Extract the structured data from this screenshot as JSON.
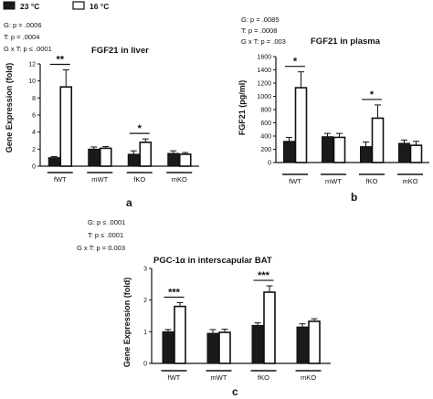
{
  "legend": {
    "items": [
      {
        "label": "23 °C",
        "fill": "#1a1a1a"
      },
      {
        "label": "16 °C",
        "fill": "#ffffff"
      }
    ]
  },
  "chart_data": [
    {
      "type": "bar",
      "panel_label": "a",
      "title": "FGF21 in liver",
      "ylabel": "Gene Expression (fold)",
      "ylim": [
        0,
        12
      ],
      "yticks": [
        0,
        2,
        4,
        6,
        8,
        10,
        12
      ],
      "stats": [
        "G: p = .0006",
        "T: p = .0004",
        "G x T: p ≤ .0001"
      ],
      "groups": [
        "fWT",
        "mWT",
        "fKO",
        "mKO"
      ],
      "series": [
        {
          "name": "23 °C",
          "values": [
            1.0,
            2.0,
            1.4,
            1.5
          ],
          "errors": [
            0.12,
            0.25,
            0.4,
            0.3
          ]
        },
        {
          "name": "16 °C",
          "values": [
            9.3,
            2.1,
            2.8,
            1.4
          ],
          "errors": [
            2.0,
            0.2,
            0.4,
            0.2
          ]
        }
      ],
      "significance": [
        {
          "group": "fWT",
          "label": "**"
        },
        {
          "group": "fKO",
          "label": "*"
        }
      ]
    },
    {
      "type": "bar",
      "panel_label": "b",
      "title": "FGF21 in plasma",
      "ylabel": "FGF21 (pg/ml)",
      "ylim": [
        0,
        1600
      ],
      "yticks": [
        0,
        200,
        400,
        600,
        800,
        1000,
        1200,
        1400,
        1600
      ],
      "stats": [
        "G: p = .0085",
        "T: p = .0008",
        "G x T: p = .003"
      ],
      "groups": [
        "fWT",
        "mWT",
        "fKO",
        "mKO"
      ],
      "series": [
        {
          "name": "23 °C",
          "values": [
            320,
            390,
            240,
            290
          ],
          "errors": [
            60,
            50,
            70,
            50
          ]
        },
        {
          "name": "16 °C",
          "values": [
            1130,
            380,
            670,
            260
          ],
          "errors": [
            240,
            60,
            200,
            60
          ]
        }
      ],
      "significance": [
        {
          "group": "fWT",
          "label": "*"
        },
        {
          "group": "fKO",
          "label": "*"
        }
      ]
    },
    {
      "type": "bar",
      "panel_label": "c",
      "title": "PGC-1α in interscapular BAT",
      "ylabel": "Gene Expression (fold)",
      "ylim": [
        0,
        3
      ],
      "yticks": [
        0,
        1,
        2,
        3
      ],
      "stats": [
        "G: p ≤ .0001",
        "T: p ≤ .0001",
        "G x T: p = 0.003"
      ],
      "groups": [
        "fWT",
        "mWT",
        "fKO",
        "mKO"
      ],
      "series": [
        {
          "name": "23 °C",
          "values": [
            1.0,
            0.95,
            1.2,
            1.15
          ],
          "errors": [
            0.07,
            0.12,
            0.08,
            0.1
          ]
        },
        {
          "name": "16 °C",
          "values": [
            1.8,
            0.98,
            2.25,
            1.33
          ],
          "errors": [
            0.12,
            0.1,
            0.2,
            0.08
          ]
        }
      ],
      "significance": [
        {
          "group": "fWT",
          "label": "***"
        },
        {
          "group": "fKO",
          "label": "***"
        }
      ]
    }
  ]
}
